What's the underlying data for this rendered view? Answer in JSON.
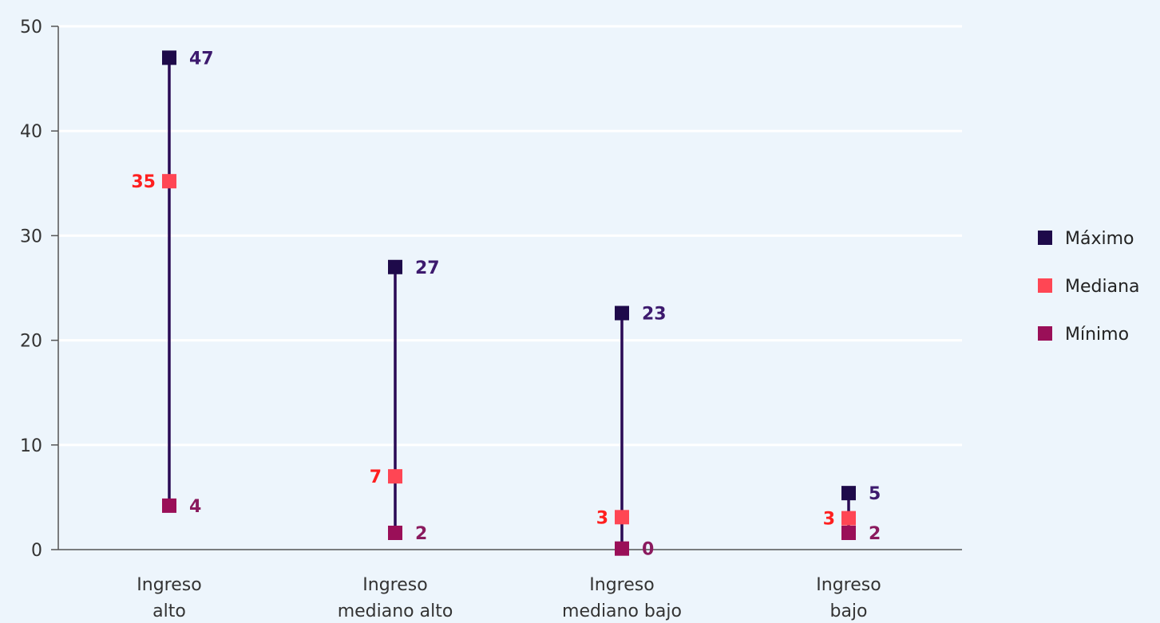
{
  "chart_data": {
    "type": "scatter",
    "title": "",
    "xlabel": "",
    "ylabel": "",
    "ylim": [
      0,
      50
    ],
    "yticks": [
      0,
      10,
      20,
      30,
      40,
      50
    ],
    "grid": true,
    "legend_position": "right",
    "categories": [
      [
        "Ingreso",
        "alto"
      ],
      [
        "Ingreso",
        "mediano alto"
      ],
      [
        "Ingreso",
        "mediano bajo"
      ],
      [
        "Ingreso",
        "bajo"
      ]
    ],
    "series": [
      {
        "name": "Máximo",
        "color": "#1e0a4a",
        "label_color": "#3d1a6e",
        "values": [
          47,
          27,
          22.6,
          5.4
        ],
        "labels": [
          "47",
          "27",
          "23",
          "5"
        ]
      },
      {
        "name": "Mediana",
        "color": "#ff4654",
        "label_color": "#ff1f1f",
        "values": [
          35.2,
          7.0,
          3.1,
          3.0
        ],
        "labels": [
          "35",
          "7",
          "3",
          "3"
        ]
      },
      {
        "name": "Mínimo",
        "color": "#9a0f58",
        "label_color": "#8a1a5e",
        "values": [
          4.2,
          1.6,
          0.1,
          1.6
        ],
        "labels": [
          "4",
          "2",
          "0",
          "2"
        ]
      }
    ],
    "range_line_color": "#2a0a55"
  }
}
